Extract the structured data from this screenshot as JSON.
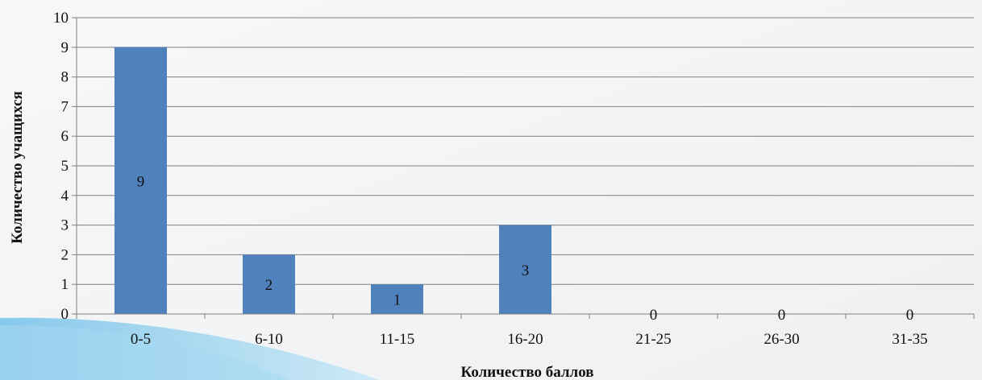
{
  "chart_data": {
    "type": "bar",
    "title": "",
    "xlabel": "Количество баллов",
    "ylabel": "Количество учащихся",
    "categories": [
      "0-5",
      "6-10",
      "11-15",
      "16-20",
      "21-25",
      "26-30",
      "31-35"
    ],
    "values": [
      9,
      2,
      1,
      3,
      0,
      0,
      0
    ],
    "ylim": [
      0,
      10
    ],
    "yticks": [
      "0",
      "1",
      "2",
      "3",
      "4",
      "5",
      "6",
      "7",
      "8",
      "9",
      "10"
    ],
    "grid": true,
    "legend": "none",
    "data_labels": true,
    "bar_color": "#4f81bd",
    "grid_color": "#7f7f7f"
  }
}
